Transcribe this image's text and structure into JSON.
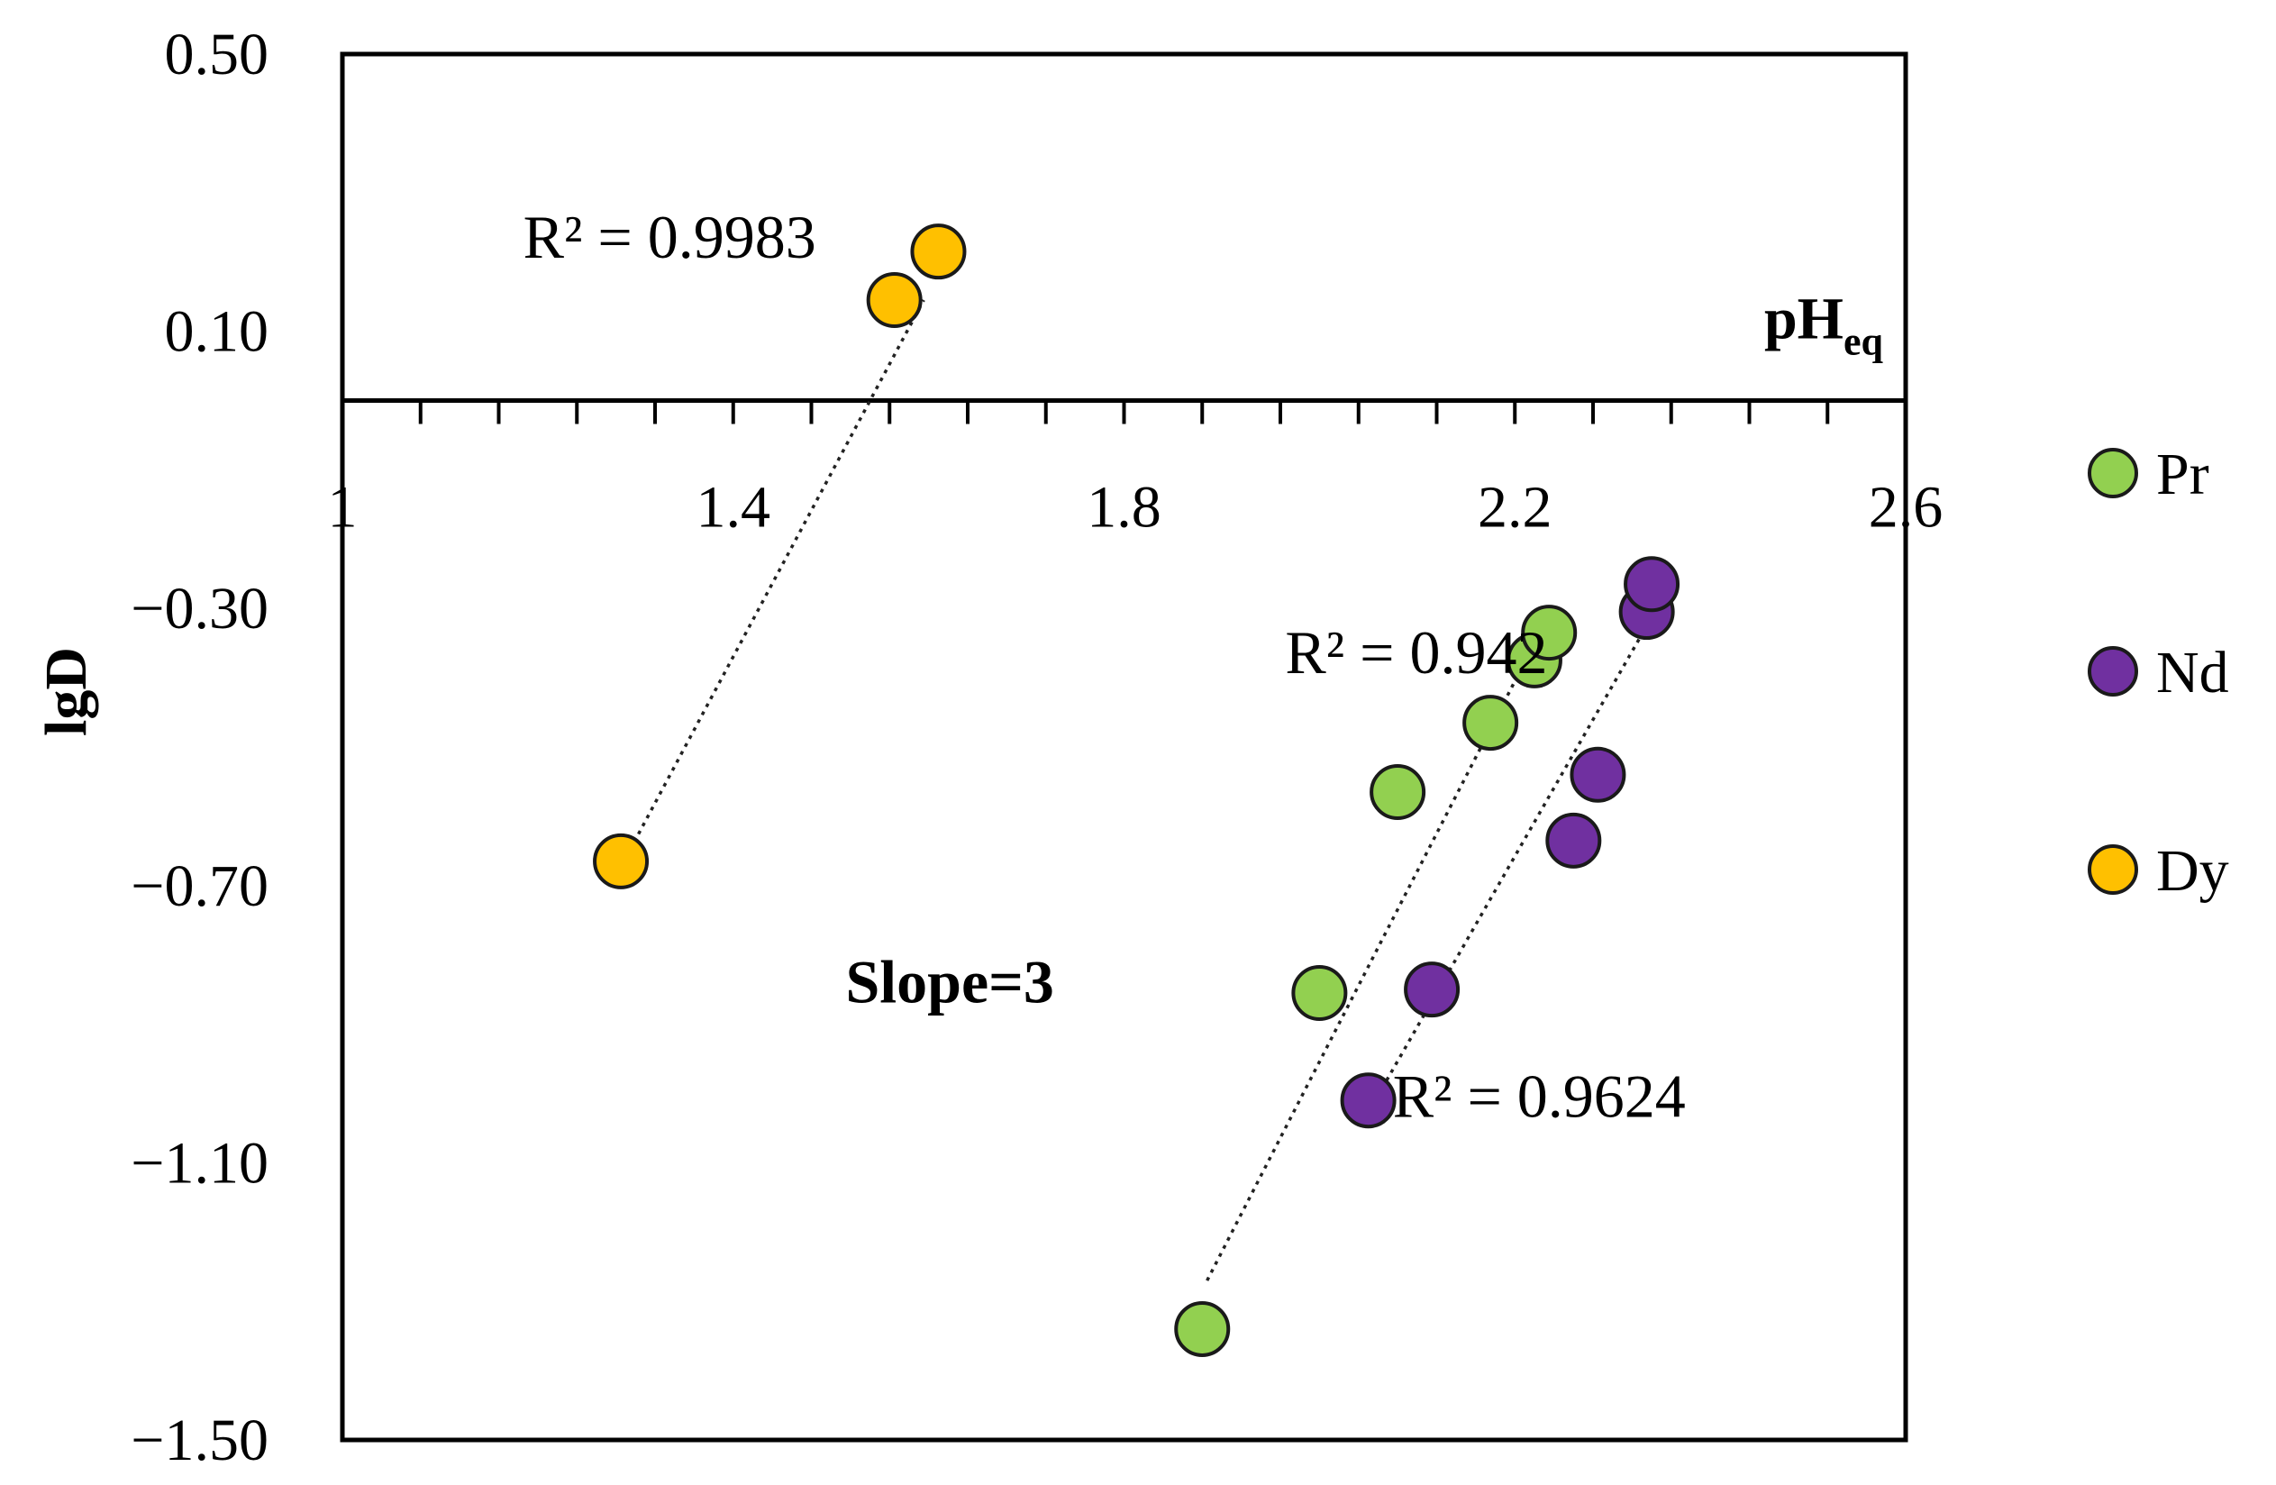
{
  "chart_data": {
    "type": "scatter",
    "xlabel": "pH",
    "xlabel_sub": "eq",
    "ylabel": "lgD",
    "xlim": [
      1.0,
      2.6
    ],
    "ylim": [
      -1.5,
      0.5
    ],
    "x_axis_crossing_y": 0.0,
    "x_ticks": [
      1.0,
      1.4,
      1.8,
      2.2,
      2.6
    ],
    "x_tick_labels": [
      "1",
      "1.4",
      "1.8",
      "2.2",
      "2.6"
    ],
    "x_minor_step": 0.08,
    "y_ticks": [
      0.5,
      0.1,
      -0.3,
      -0.7,
      -1.1,
      -1.5
    ],
    "y_tick_labels": [
      "0.50",
      "0.10",
      "−0.30",
      "−0.70",
      "−1.10",
      "−1.50"
    ],
    "legend_position": "right",
    "series": [
      {
        "name": "Pr",
        "color": "#92d050",
        "points": [
          [
            1.88,
            -1.34
          ],
          [
            2.0,
            -0.855
          ],
          [
            2.08,
            -0.565
          ],
          [
            2.175,
            -0.465
          ],
          [
            2.22,
            -0.375
          ],
          [
            2.235,
            -0.335
          ]
        ],
        "trendline": {
          "x": [
            1.885,
            2.2
          ],
          "y": [
            -1.27,
            -0.405
          ]
        },
        "r2_label": "R² = 0.942"
      },
      {
        "name": "Nd",
        "color": "#7030a0",
        "points": [
          [
            2.05,
            -1.01
          ],
          [
            2.115,
            -0.85
          ],
          [
            2.26,
            -0.635
          ],
          [
            2.285,
            -0.54
          ],
          [
            2.335,
            -0.305
          ],
          [
            2.34,
            -0.265
          ]
        ],
        "trendline": {
          "x": [
            2.055,
            2.335
          ],
          "y": [
            -1.015,
            -0.325
          ]
        },
        "r2_label": "R² = 0.9624"
      },
      {
        "name": "Dy",
        "color": "#ffc000",
        "points": [
          [
            1.285,
            -0.665
          ],
          [
            1.565,
            0.145
          ],
          [
            1.61,
            0.215
          ]
        ],
        "trendline": {
          "x": [
            1.29,
            1.595
          ],
          "y": [
            -0.66,
            0.145
          ]
        },
        "r2_label": "R² = 0.9983"
      }
    ],
    "annotations": {
      "slope_label": "Slope=3"
    }
  }
}
